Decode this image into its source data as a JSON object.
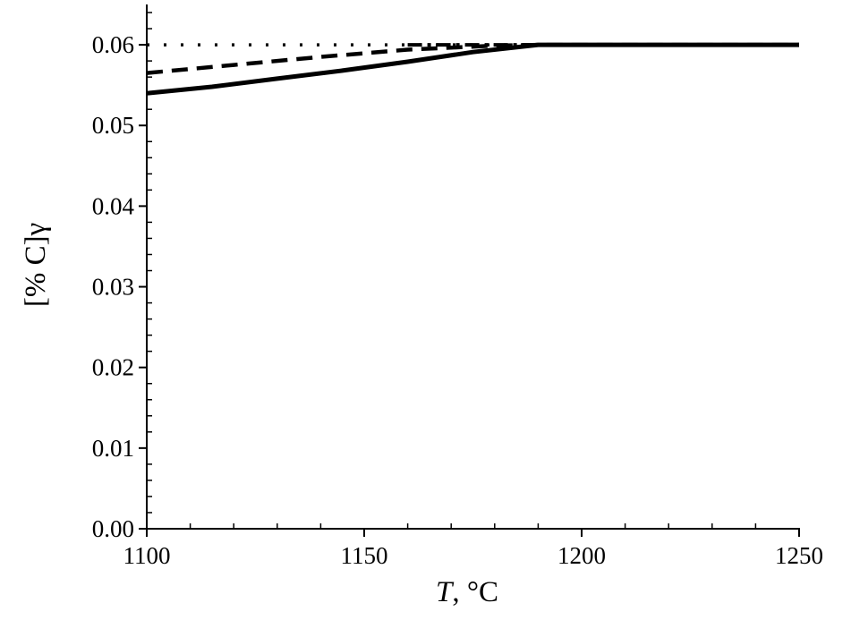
{
  "chart_data": {
    "type": "line",
    "xlabel_var": "T",
    "xlabel_unit": ", °C",
    "ylabel": "[% C]γ",
    "xlim": [
      1100,
      1250
    ],
    "ylim": [
      0.0,
      0.065
    ],
    "x_ticks": [
      "1100",
      "1150",
      "1200",
      "1250"
    ],
    "y_ticks": [
      "0.00",
      "0.01",
      "0.02",
      "0.03",
      "0.04",
      "0.05",
      "0.06"
    ],
    "grid": false,
    "legend": "none",
    "series": [
      {
        "style": "solid",
        "color": "#000000",
        "points": [
          [
            1100,
            0.054
          ],
          [
            1115,
            0.0548
          ],
          [
            1130,
            0.0558
          ],
          [
            1145,
            0.0568
          ],
          [
            1160,
            0.0579
          ],
          [
            1175,
            0.0591
          ],
          [
            1190,
            0.06
          ],
          [
            1250,
            0.06
          ]
        ]
      },
      {
        "style": "dashed",
        "color": "#000000",
        "points": [
          [
            1100,
            0.0565
          ],
          [
            1120,
            0.0575
          ],
          [
            1140,
            0.0585
          ],
          [
            1160,
            0.0594
          ],
          [
            1180,
            0.0599
          ],
          [
            1190,
            0.06
          ],
          [
            1250,
            0.06
          ]
        ]
      },
      {
        "style": "dash-dot",
        "color": "#000000",
        "points": [
          [
            1160,
            0.06
          ],
          [
            1190,
            0.06
          ],
          [
            1250,
            0.06
          ]
        ]
      },
      {
        "style": "dotted",
        "color": "#000000",
        "points": [
          [
            1100,
            0.06
          ],
          [
            1190,
            0.06
          ]
        ]
      }
    ]
  }
}
